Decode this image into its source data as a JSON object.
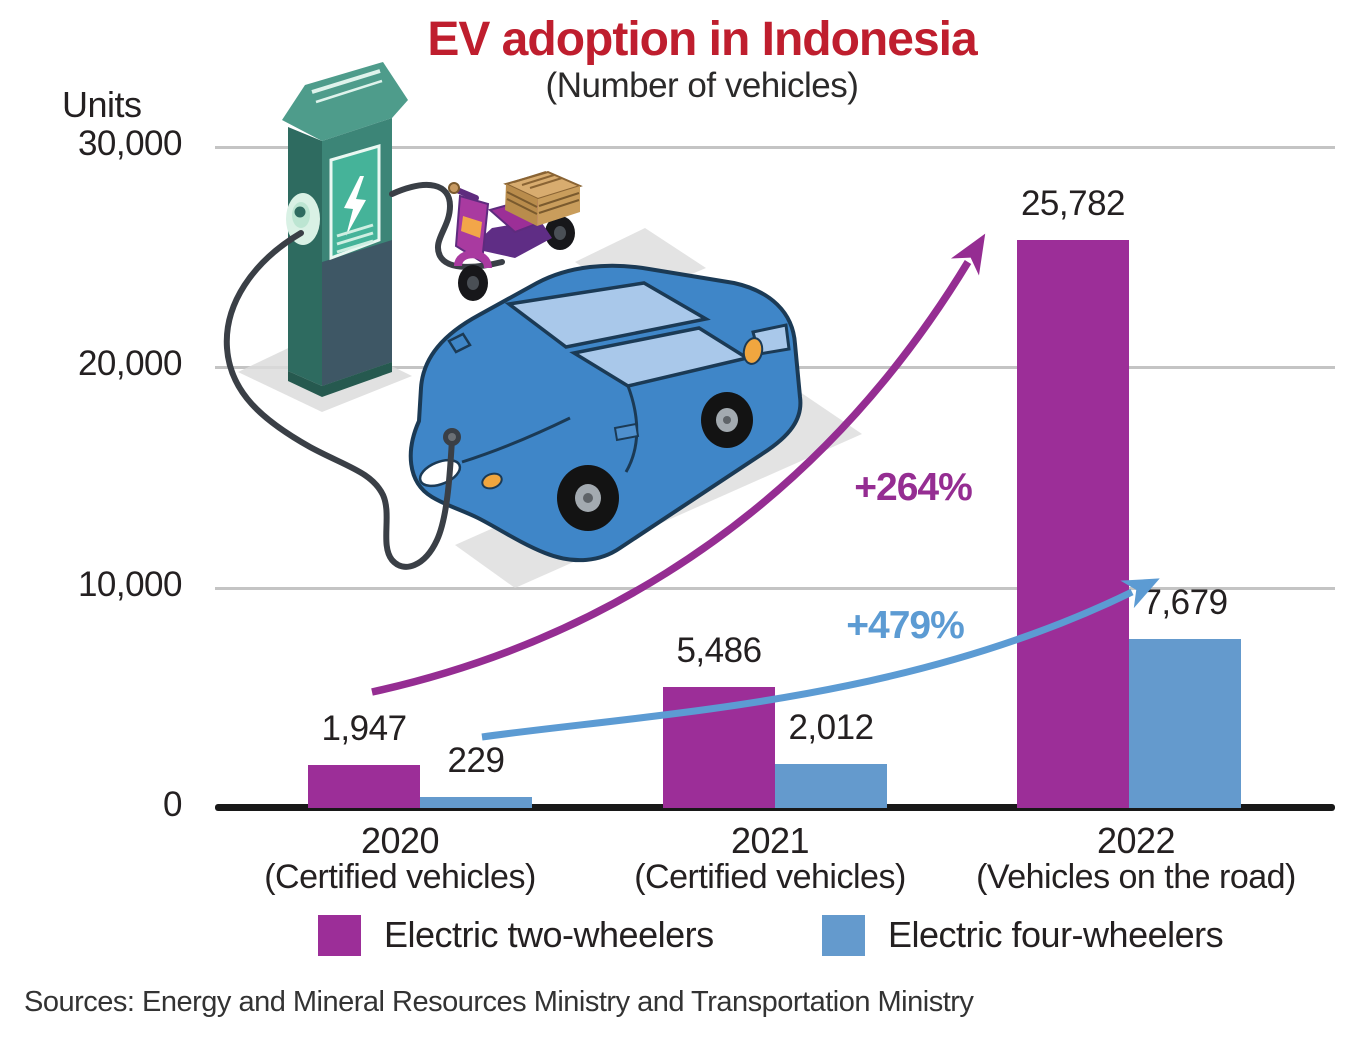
{
  "header": {
    "title": "EV adoption in Indonesia",
    "subtitle": "(Number of vehicles)"
  },
  "chart_data": {
    "type": "bar",
    "title": "EV adoption in Indonesia",
    "subtitle": "(Number of vehicles)",
    "unit_label": "Units",
    "ylim": [
      0,
      30000
    ],
    "grid": true,
    "legend_position": "bottom",
    "y_ticks": [
      {
        "value": 30000,
        "label": "30,000"
      },
      {
        "value": 20000,
        "label": "20,000"
      },
      {
        "value": 10000,
        "label": "10,000"
      },
      {
        "value": 0,
        "label": "0"
      }
    ],
    "groups": [
      {
        "year": "2020",
        "qualifier": "(Certified vehicles)"
      },
      {
        "year": "2021",
        "qualifier": "(Certified vehicles)"
      },
      {
        "year": "2022",
        "qualifier": "(Vehicles on the road)"
      }
    ],
    "series": [
      {
        "name": "Electric two-wheelers",
        "color": "#9C2E98",
        "values": [
          1947,
          5486,
          25782
        ],
        "value_labels": [
          "1,947",
          "5,486",
          "25,782"
        ]
      },
      {
        "name": "Electric four-wheelers",
        "color": "#649ACD",
        "values": [
          229,
          2012,
          7679
        ],
        "value_labels": [
          "229",
          "2,012",
          "7,679"
        ]
      }
    ],
    "annotations": [
      {
        "text": "+264%",
        "color": "#952D92",
        "applies_to": "Electric two-wheelers"
      },
      {
        "text": "+479%",
        "color": "#5C9BD3",
        "applies_to": "Electric four-wheelers"
      }
    ]
  },
  "source": {
    "text": "Sources: Energy and Mineral Resources Ministry and Transportation Ministry"
  },
  "colors": {
    "title": "#BF1E2E",
    "text": "#242021",
    "gridline": "#C4C4C4",
    "axis": "#181818"
  },
  "illustration": {
    "items": [
      "ev-charging-station",
      "electric-scooter",
      "electric-car",
      "charging-cable"
    ]
  }
}
